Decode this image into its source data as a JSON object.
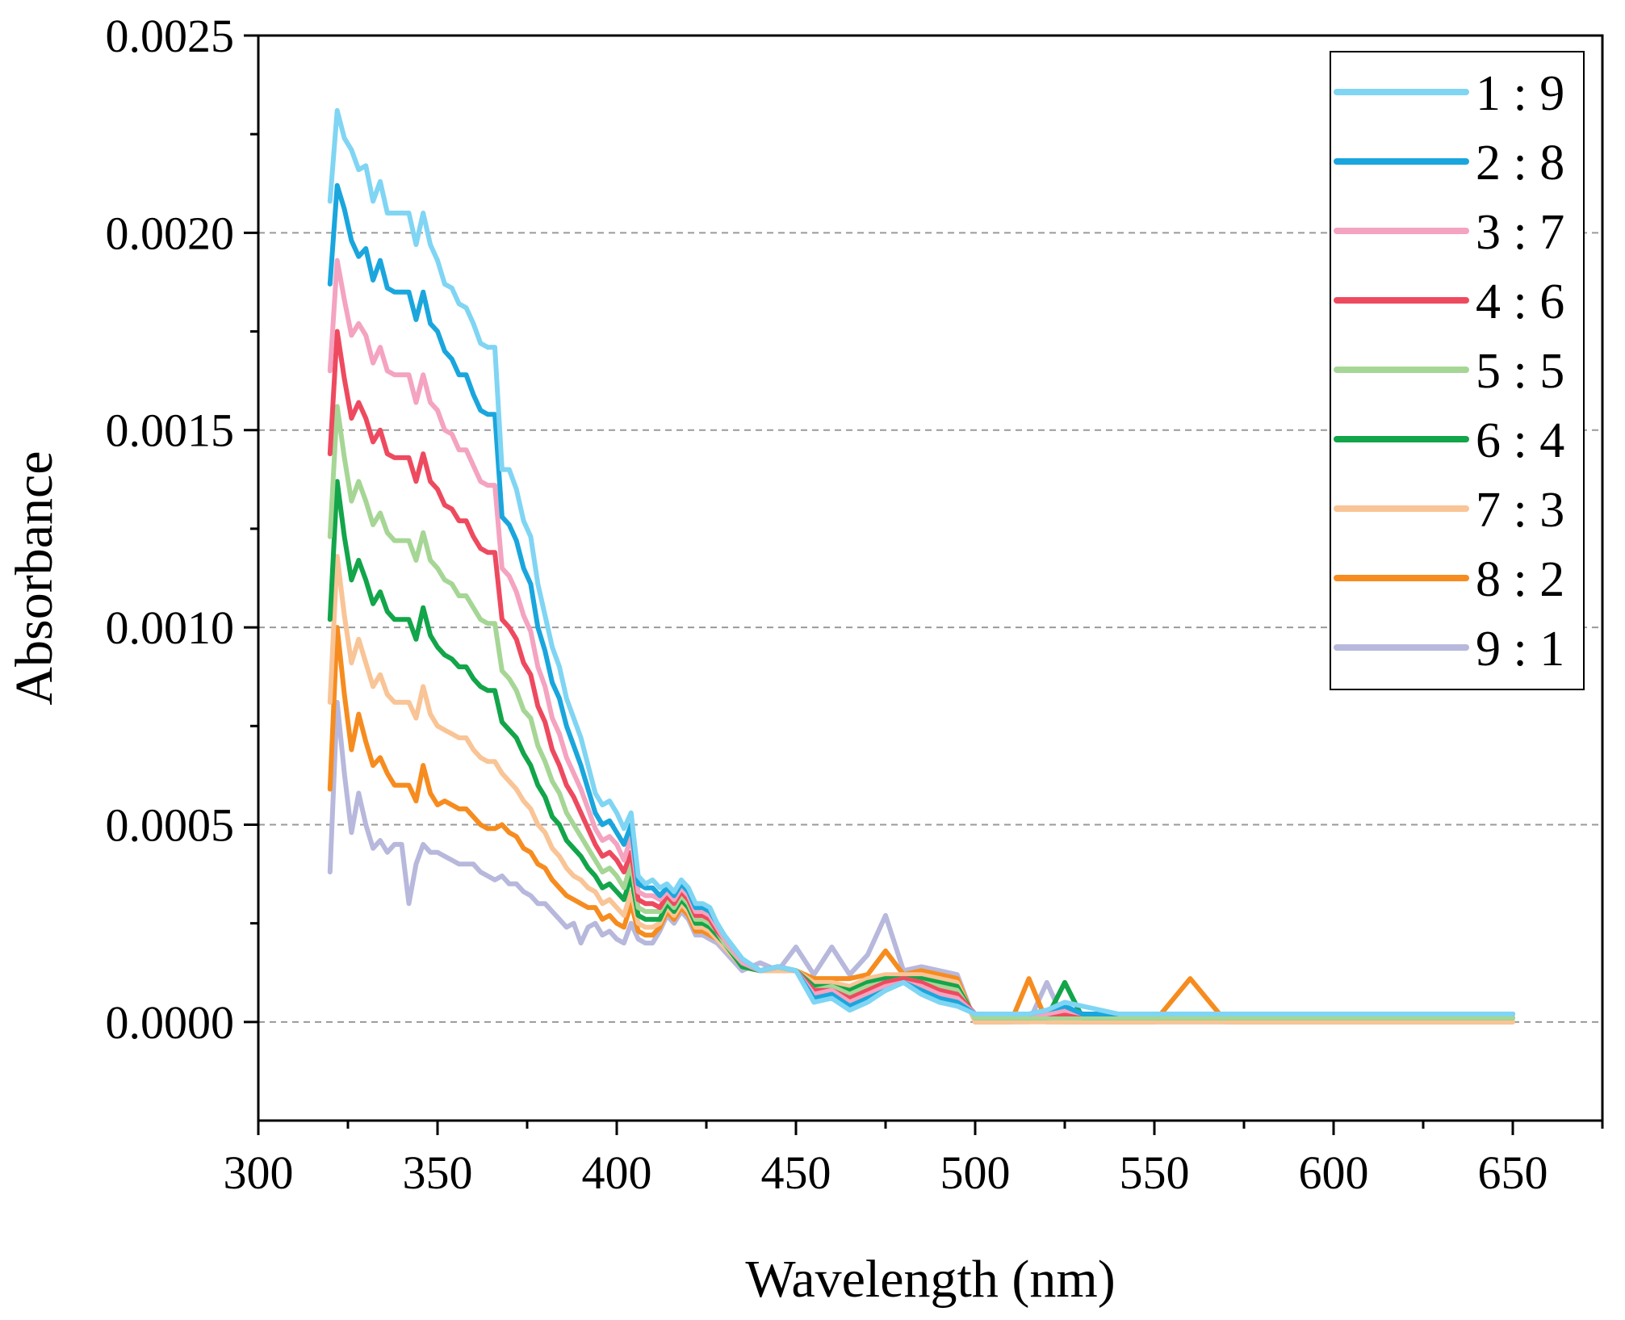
{
  "chart_data": {
    "type": "line",
    "title": "",
    "xlabel": "Wavelength (nm)",
    "ylabel": "Absorbance",
    "xlim": [
      300,
      675
    ],
    "ylim": [
      -0.00025,
      0.0025
    ],
    "x_ticks": [
      300,
      350,
      400,
      450,
      500,
      550,
      600,
      650
    ],
    "x_tick_labels": [
      "300",
      "350",
      "400",
      "450",
      "500",
      "550",
      "600",
      "650"
    ],
    "y_ticks": [
      0.0,
      0.0005,
      0.001,
      0.0015,
      0.002,
      0.0025
    ],
    "y_tick_labels": [
      "0.0000",
      "0.0005",
      "0.0010",
      "0.0015",
      "0.0020",
      "0.0025"
    ],
    "grid": "horizontal dashed",
    "legend_position": "top-right",
    "x": [
      320,
      322,
      324,
      326,
      328,
      330,
      332,
      334,
      336,
      338,
      340,
      342,
      344,
      346,
      348,
      350,
      352,
      354,
      356,
      358,
      360,
      362,
      364,
      366,
      368,
      370,
      372,
      374,
      376,
      378,
      380,
      382,
      384,
      386,
      388,
      390,
      392,
      394,
      396,
      398,
      400,
      402,
      404,
      406,
      408,
      410,
      412,
      414,
      416,
      418,
      420,
      422,
      424,
      426,
      428,
      430,
      435,
      440,
      445,
      450,
      455,
      460,
      465,
      470,
      475,
      480,
      485,
      490,
      495,
      500,
      505,
      510,
      515,
      520,
      525,
      530,
      540,
      550,
      560,
      570,
      580,
      590,
      600,
      610,
      620,
      630,
      640,
      650
    ],
    "series": [
      {
        "name": "1 : 9",
        "color": "#7fd5f3",
        "values": [
          0.00208,
          0.00231,
          0.00224,
          0.00221,
          0.00216,
          0.00217,
          0.00208,
          0.00213,
          0.00205,
          0.00205,
          0.00205,
          0.00205,
          0.00197,
          0.00205,
          0.00197,
          0.00193,
          0.00187,
          0.00186,
          0.00182,
          0.00181,
          0.00177,
          0.00172,
          0.00171,
          0.00171,
          0.0014,
          0.0014,
          0.00135,
          0.00127,
          0.00123,
          0.00111,
          0.00103,
          0.00095,
          0.0009,
          0.00082,
          0.00077,
          0.00072,
          0.00065,
          0.00058,
          0.00055,
          0.00056,
          0.00053,
          0.00049,
          0.00053,
          0.00037,
          0.00035,
          0.00036,
          0.00034,
          0.00035,
          0.00033,
          0.00036,
          0.00034,
          0.0003,
          0.0003,
          0.00029,
          0.00025,
          0.00022,
          0.00016,
          0.00013,
          0.00014,
          0.00013,
          5e-05,
          6e-05,
          3e-05,
          5e-05,
          8e-05,
          0.0001,
          7e-05,
          5e-05,
          4e-05,
          2e-05,
          2e-05,
          2e-05,
          2e-05,
          3e-05,
          5e-05,
          4e-05,
          2e-05,
          2e-05,
          2e-05,
          2e-05,
          2e-05,
          2e-05,
          2e-05,
          2e-05,
          2e-05,
          2e-05,
          2e-05,
          2e-05
        ]
      },
      {
        "name": "2 : 8",
        "color": "#1aa6dd",
        "values": [
          0.00187,
          0.00212,
          0.00206,
          0.00198,
          0.00194,
          0.00196,
          0.00188,
          0.00193,
          0.00186,
          0.00185,
          0.00185,
          0.00185,
          0.00178,
          0.00185,
          0.00177,
          0.00175,
          0.0017,
          0.00168,
          0.00164,
          0.00164,
          0.00159,
          0.00155,
          0.00154,
          0.00154,
          0.00128,
          0.00126,
          0.00122,
          0.00115,
          0.00111,
          0.001,
          0.00094,
          0.00086,
          0.00082,
          0.00075,
          0.0007,
          0.00065,
          0.00059,
          0.00053,
          0.0005,
          0.00051,
          0.00048,
          0.00045,
          0.0005,
          0.00035,
          0.00034,
          0.00034,
          0.00032,
          0.00034,
          0.00032,
          0.00035,
          0.00033,
          0.00029,
          0.00029,
          0.00028,
          0.00025,
          0.00022,
          0.00016,
          0.00013,
          0.00014,
          0.00013,
          6e-05,
          7e-05,
          4e-05,
          6e-05,
          8e-05,
          0.0001,
          8e-05,
          6e-05,
          5e-05,
          2e-05,
          2e-05,
          2e-05,
          2e-05,
          3e-05,
          4e-05,
          2e-05,
          2e-05,
          2e-05,
          2e-05,
          2e-05,
          2e-05,
          2e-05,
          2e-05,
          2e-05,
          2e-05,
          2e-05,
          2e-05,
          2e-05
        ]
      },
      {
        "name": "3 : 7",
        "color": "#f4a3c0",
        "values": [
          0.00165,
          0.00193,
          0.00183,
          0.00174,
          0.00177,
          0.00174,
          0.00167,
          0.00171,
          0.00165,
          0.00164,
          0.00164,
          0.00164,
          0.00157,
          0.00164,
          0.00157,
          0.00155,
          0.0015,
          0.00149,
          0.00145,
          0.00145,
          0.00141,
          0.00137,
          0.00136,
          0.00136,
          0.00115,
          0.00113,
          0.00109,
          0.00103,
          0.00099,
          0.0009,
          0.00085,
          0.00077,
          0.00073,
          0.00067,
          0.00063,
          0.00059,
          0.00054,
          0.00049,
          0.00046,
          0.00047,
          0.00045,
          0.00041,
          0.00047,
          0.00033,
          0.00032,
          0.00032,
          0.00031,
          0.00033,
          0.00031,
          0.00034,
          0.00032,
          0.00028,
          0.00028,
          0.00027,
          0.00024,
          0.00021,
          0.00015,
          0.00013,
          0.00014,
          0.00013,
          7e-05,
          8e-05,
          5e-05,
          7e-05,
          9e-05,
          0.0001,
          9e-05,
          7e-05,
          6e-05,
          2e-05,
          2e-05,
          2e-05,
          2e-05,
          2e-05,
          3e-05,
          2e-05,
          2e-05,
          2e-05,
          2e-05,
          2e-05,
          2e-05,
          2e-05,
          2e-05,
          2e-05,
          2e-05,
          2e-05,
          2e-05,
          2e-05
        ]
      },
      {
        "name": "4 : 6",
        "color": "#ee4a5f",
        "values": [
          0.00144,
          0.00175,
          0.00163,
          0.00153,
          0.00157,
          0.00153,
          0.00147,
          0.0015,
          0.00144,
          0.00143,
          0.00143,
          0.00143,
          0.00137,
          0.00144,
          0.00137,
          0.00135,
          0.00131,
          0.0013,
          0.00127,
          0.00127,
          0.00123,
          0.0012,
          0.00119,
          0.00119,
          0.00102,
          0.001,
          0.00097,
          0.00091,
          0.00088,
          0.0008,
          0.00076,
          0.00069,
          0.00065,
          0.0006,
          0.00057,
          0.00053,
          0.00049,
          0.00045,
          0.00042,
          0.00043,
          0.00041,
          0.00038,
          0.00043,
          0.00031,
          0.0003,
          0.0003,
          0.00029,
          0.00032,
          0.0003,
          0.00033,
          0.00031,
          0.00027,
          0.00027,
          0.00026,
          0.00023,
          0.00021,
          0.00015,
          0.00013,
          0.00014,
          0.00013,
          8e-05,
          8e-05,
          6e-05,
          8e-05,
          0.0001,
          0.00011,
          0.0001,
          8e-05,
          7e-05,
          2e-05,
          2e-05,
          2e-05,
          2e-05,
          2e-05,
          2e-05,
          2e-05,
          2e-05,
          2e-05,
          2e-05,
          2e-05,
          2e-05,
          2e-05,
          2e-05,
          2e-05,
          2e-05,
          2e-05,
          2e-05,
          2e-05
        ]
      },
      {
        "name": "5 : 5",
        "color": "#a6d695",
        "values": [
          0.00123,
          0.00156,
          0.00143,
          0.00132,
          0.00137,
          0.00132,
          0.00126,
          0.00129,
          0.00124,
          0.00122,
          0.00122,
          0.00122,
          0.00117,
          0.00124,
          0.00117,
          0.00115,
          0.00112,
          0.00111,
          0.00108,
          0.00108,
          0.00105,
          0.00102,
          0.00101,
          0.00101,
          0.00089,
          0.00087,
          0.00084,
          0.00079,
          0.00077,
          0.0007,
          0.00066,
          0.00061,
          0.00058,
          0.00053,
          0.0005,
          0.00047,
          0.00044,
          0.00041,
          0.00038,
          0.00039,
          0.00037,
          0.00034,
          0.0004,
          0.00029,
          0.00028,
          0.00028,
          0.00028,
          0.00031,
          0.00029,
          0.00032,
          0.0003,
          0.00026,
          0.00026,
          0.00025,
          0.00023,
          0.0002,
          0.00015,
          0.00013,
          0.00014,
          0.00013,
          8e-05,
          9e-05,
          7e-05,
          9e-05,
          0.0001,
          0.00011,
          0.0001,
          9e-05,
          8e-05,
          1e-05,
          1e-05,
          1e-05,
          1e-05,
          1e-05,
          1e-05,
          1e-05,
          1e-05,
          1e-05,
          1e-05,
          1e-05,
          1e-05,
          1e-05,
          1e-05,
          1e-05,
          1e-05,
          1e-05,
          1e-05,
          1e-05
        ]
      },
      {
        "name": "6 : 4",
        "color": "#12a54a",
        "values": [
          0.00102,
          0.00137,
          0.00123,
          0.00112,
          0.00117,
          0.00112,
          0.00106,
          0.00109,
          0.00104,
          0.00102,
          0.00102,
          0.00102,
          0.00097,
          0.00105,
          0.00098,
          0.00095,
          0.00093,
          0.00092,
          0.0009,
          0.0009,
          0.00087,
          0.00085,
          0.00084,
          0.00084,
          0.00076,
          0.00074,
          0.00072,
          0.00068,
          0.00065,
          0.0006,
          0.00057,
          0.00052,
          0.0005,
          0.00046,
          0.00044,
          0.00042,
          0.00039,
          0.00037,
          0.00034,
          0.00035,
          0.00033,
          0.00031,
          0.00037,
          0.00027,
          0.00026,
          0.00026,
          0.00026,
          0.0003,
          0.00028,
          0.00031,
          0.00029,
          0.00025,
          0.00025,
          0.00024,
          0.00022,
          0.0002,
          0.00014,
          0.00013,
          0.00014,
          0.00013,
          9e-05,
          9e-05,
          8e-05,
          0.0001,
          0.00011,
          0.00011,
          0.00011,
          0.0001,
          9e-05,
          1e-05,
          1e-05,
          1e-05,
          1e-05,
          1e-05,
          0.0001,
          1e-05,
          1e-05,
          1e-05,
          1e-05,
          1e-05,
          1e-05,
          1e-05,
          1e-05,
          1e-05,
          1e-05,
          1e-05,
          1e-05,
          1e-05
        ]
      },
      {
        "name": "7 : 3",
        "color": "#f9c496",
        "values": [
          0.00081,
          0.00118,
          0.00103,
          0.00091,
          0.00097,
          0.00091,
          0.00085,
          0.00088,
          0.00083,
          0.00081,
          0.00081,
          0.00081,
          0.00077,
          0.00085,
          0.00078,
          0.00075,
          0.00074,
          0.00073,
          0.00072,
          0.00072,
          0.00069,
          0.00067,
          0.00066,
          0.00066,
          0.00063,
          0.00061,
          0.00059,
          0.00056,
          0.00054,
          0.0005,
          0.00048,
          0.00044,
          0.00042,
          0.00039,
          0.00037,
          0.00036,
          0.00034,
          0.00033,
          0.0003,
          0.00031,
          0.00029,
          0.00027,
          0.00033,
          0.00025,
          0.00024,
          0.00024,
          0.00025,
          0.00029,
          0.00027,
          0.0003,
          0.00028,
          0.00024,
          0.00024,
          0.00023,
          0.00021,
          0.00019,
          0.00014,
          0.00013,
          0.00013,
          0.00013,
          0.0001,
          0.0001,
          9e-05,
          0.00011,
          0.00012,
          0.00012,
          0.00012,
          0.00011,
          0.0001,
          0.0,
          0.0,
          0.0,
          0.0,
          0.0,
          0.0,
          0.0,
          0.0,
          0.0,
          0.0,
          0.0,
          0.0,
          0.0,
          0.0,
          0.0,
          0.0,
          0.0,
          0.0,
          0.0
        ]
      },
      {
        "name": "8 : 2",
        "color": "#f68c1f",
        "values": [
          0.00059,
          0.001,
          0.00083,
          0.00069,
          0.00078,
          0.00071,
          0.00065,
          0.00067,
          0.00063,
          0.0006,
          0.0006,
          0.0006,
          0.00056,
          0.00065,
          0.00058,
          0.00055,
          0.00056,
          0.00055,
          0.00054,
          0.00054,
          0.00052,
          0.0005,
          0.00049,
          0.00049,
          0.0005,
          0.00048,
          0.00047,
          0.00044,
          0.00043,
          0.0004,
          0.00039,
          0.00036,
          0.00034,
          0.00032,
          0.00031,
          0.0003,
          0.00029,
          0.00029,
          0.00026,
          0.00027,
          0.00025,
          0.00024,
          0.0003,
          0.00023,
          0.00022,
          0.00022,
          0.00024,
          0.00028,
          0.00026,
          0.00029,
          0.00027,
          0.00023,
          0.00023,
          0.00022,
          0.00021,
          0.00019,
          0.00014,
          0.00013,
          0.00013,
          0.00013,
          0.00011,
          0.00011,
          0.00011,
          0.00012,
          0.00018,
          0.00012,
          0.00013,
          0.00012,
          0.00011,
          0.0,
          0.0,
          0.0,
          0.00011,
          0.0,
          0.0,
          0.0,
          0.0,
          0.0,
          0.00011,
          0.0,
          0.0,
          0.0,
          0.0,
          0.0,
          0.0,
          0.0,
          0.0,
          0.0
        ]
      },
      {
        "name": "9 : 1",
        "color": "#b7b8dc",
        "values": [
          0.00038,
          0.00081,
          0.00063,
          0.00048,
          0.00058,
          0.0005,
          0.00044,
          0.00046,
          0.00043,
          0.00045,
          0.00045,
          0.0003,
          0.0004,
          0.00045,
          0.00043,
          0.00043,
          0.00042,
          0.00041,
          0.0004,
          0.0004,
          0.0004,
          0.00038,
          0.00037,
          0.00036,
          0.00037,
          0.00035,
          0.00035,
          0.00033,
          0.00032,
          0.0003,
          0.0003,
          0.00028,
          0.00026,
          0.00024,
          0.00025,
          0.0002,
          0.00024,
          0.00025,
          0.00022,
          0.00023,
          0.00021,
          0.0002,
          0.00025,
          0.00021,
          0.0002,
          0.0002,
          0.00023,
          0.00027,
          0.00025,
          0.00028,
          0.00026,
          0.00022,
          0.00022,
          0.00021,
          0.0002,
          0.00018,
          0.00013,
          0.00015,
          0.00013,
          0.00019,
          0.00012,
          0.00019,
          0.00012,
          0.00017,
          0.00027,
          0.00013,
          0.00014,
          0.00013,
          0.00012,
          0.0,
          0.0,
          0.0,
          0.0,
          0.0001,
          0.0,
          0.0,
          0.0,
          0.0,
          0.0,
          0.0,
          0.0,
          0.0,
          0.0,
          0.0,
          0.0,
          0.0,
          0.0,
          0.0
        ]
      }
    ]
  }
}
